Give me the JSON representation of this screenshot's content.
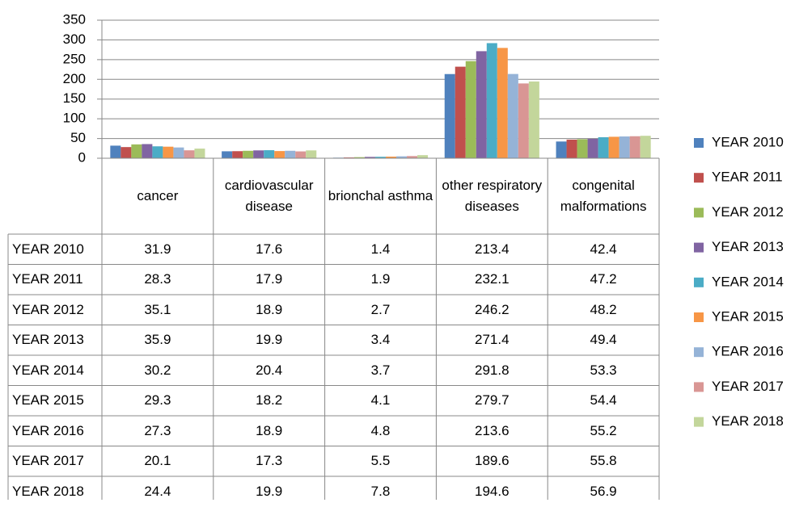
{
  "chart_data": {
    "type": "bar",
    "categories": [
      "cancer",
      "cardiovascular disease",
      "brionchal asthma",
      "other respiratory diseases",
      "congenital malformations"
    ],
    "series": [
      {
        "name": "YEAR 2010",
        "color": "#4f81bd",
        "values": [
          31.9,
          17.6,
          1.4,
          213.4,
          42.4
        ]
      },
      {
        "name": "YEAR 2011",
        "color": "#c0504d",
        "values": [
          28.3,
          17.9,
          1.9,
          232.1,
          47.2
        ]
      },
      {
        "name": "YEAR 2012",
        "color": "#9bbb59",
        "values": [
          35.1,
          18.9,
          2.7,
          246.2,
          48.2
        ]
      },
      {
        "name": "YEAR 2013",
        "color": "#8064a2",
        "values": [
          35.9,
          19.9,
          3.4,
          271.4,
          49.4
        ]
      },
      {
        "name": "YEAR 2014",
        "color": "#4bacc6",
        "values": [
          30.2,
          20.4,
          3.7,
          291.8,
          53.3
        ]
      },
      {
        "name": "YEAR 2015",
        "color": "#f79646",
        "values": [
          29.3,
          18.2,
          4.1,
          279.7,
          54.4
        ]
      },
      {
        "name": "YEAR 2016",
        "color": "#95b3d7",
        "values": [
          27.3,
          18.9,
          4.8,
          213.6,
          55.2
        ]
      },
      {
        "name": "YEAR 2017",
        "color": "#d99694",
        "values": [
          20.1,
          17.3,
          5.5,
          189.6,
          55.8
        ]
      },
      {
        "name": "YEAR 2018",
        "color": "#c3d69b",
        "values": [
          24.4,
          19.9,
          7.8,
          194.6,
          56.9
        ]
      }
    ],
    "ylim": [
      0,
      350
    ],
    "yticks": [
      0,
      50,
      100,
      150,
      200,
      250,
      300,
      350
    ],
    "grid": true,
    "legend": "right",
    "data_table": true
  }
}
